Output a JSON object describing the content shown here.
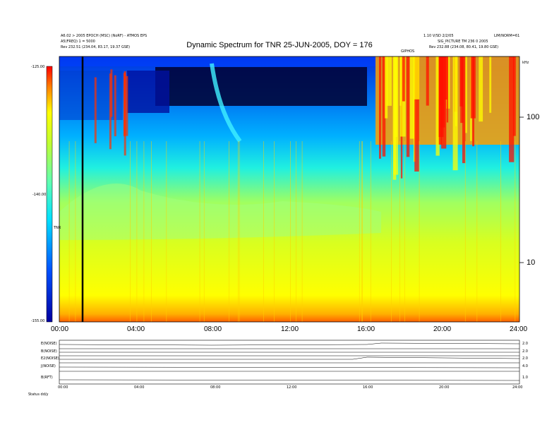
{
  "header": {
    "line1_left": "A6.02 > 2005 EPOCH (MSC) (NoRF) - ATMOS EPS",
    "line2_left": "A5(FREQ) 1 = 5000",
    "line3_left": "Rev 232.51 (234.04, 83.17, 19.37 GSE)",
    "line1_right": "1.10 V/SD 2/2/05",
    "line1_right2": "LIM/NORM=61",
    "line2_right": "SIG_PICTURE TM 236  0  2005",
    "line3_right": "Rev 232.88 (234.08, 80.41, 19.80 GSE)",
    "right_label": "GIPHOS",
    "units_label": "kHz"
  },
  "footer": {
    "label": "Status   dd/y"
  },
  "chart_data": {
    "type": "heatmap",
    "title": "Dynamic Spectrum for TNR 25-JUN-2005, DOY = 176",
    "xlabel": "",
    "ylabel": "TNR",
    "x_ticks": [
      "00:00",
      "04:00",
      "08:00",
      "12:00",
      "16:00",
      "20:00",
      "24:00"
    ],
    "x_range_hours": [
      0,
      24
    ],
    "y_ticks": [
      "100",
      "10"
    ],
    "y_scale": "log",
    "y_range_khz": [
      4,
      300
    ],
    "colorbar": {
      "ticks": [
        "-125.00",
        "-140.00",
        "-155.00"
      ],
      "range": [
        -155,
        -125
      ],
      "colors": [
        "#0000a0",
        "#0050ff",
        "#00c8ff",
        "#60ffb0",
        "#b0ff40",
        "#ffff00",
        "#ff8000",
        "#ff0000"
      ]
    },
    "features": [
      {
        "name": "dark band",
        "x_start": 5.0,
        "x_end": 15.0,
        "y_khz": [
          150,
          300
        ]
      },
      {
        "name": "red bursts",
        "x_start": 16.6,
        "x_end": 24.0,
        "y_khz": [
          65,
          300
        ]
      },
      {
        "name": "vertical marker",
        "x": 1.2
      }
    ],
    "panels": [
      {
        "label": "E(NOISE)",
        "right": "2.0"
      },
      {
        "label": "B(NOISE)",
        "right": "2.0"
      },
      {
        "label": "E2(NOISE)",
        "right": "2.0"
      },
      {
        "label": "J(NOISE)",
        "right": "4.0"
      },
      {
        "label": "B(RFT)",
        "right": "1.0"
      }
    ],
    "panel_x_ticks": [
      "00:00",
      "04:00",
      "08:00",
      "12:00",
      "16:00",
      "20:00",
      "24:00"
    ]
  }
}
